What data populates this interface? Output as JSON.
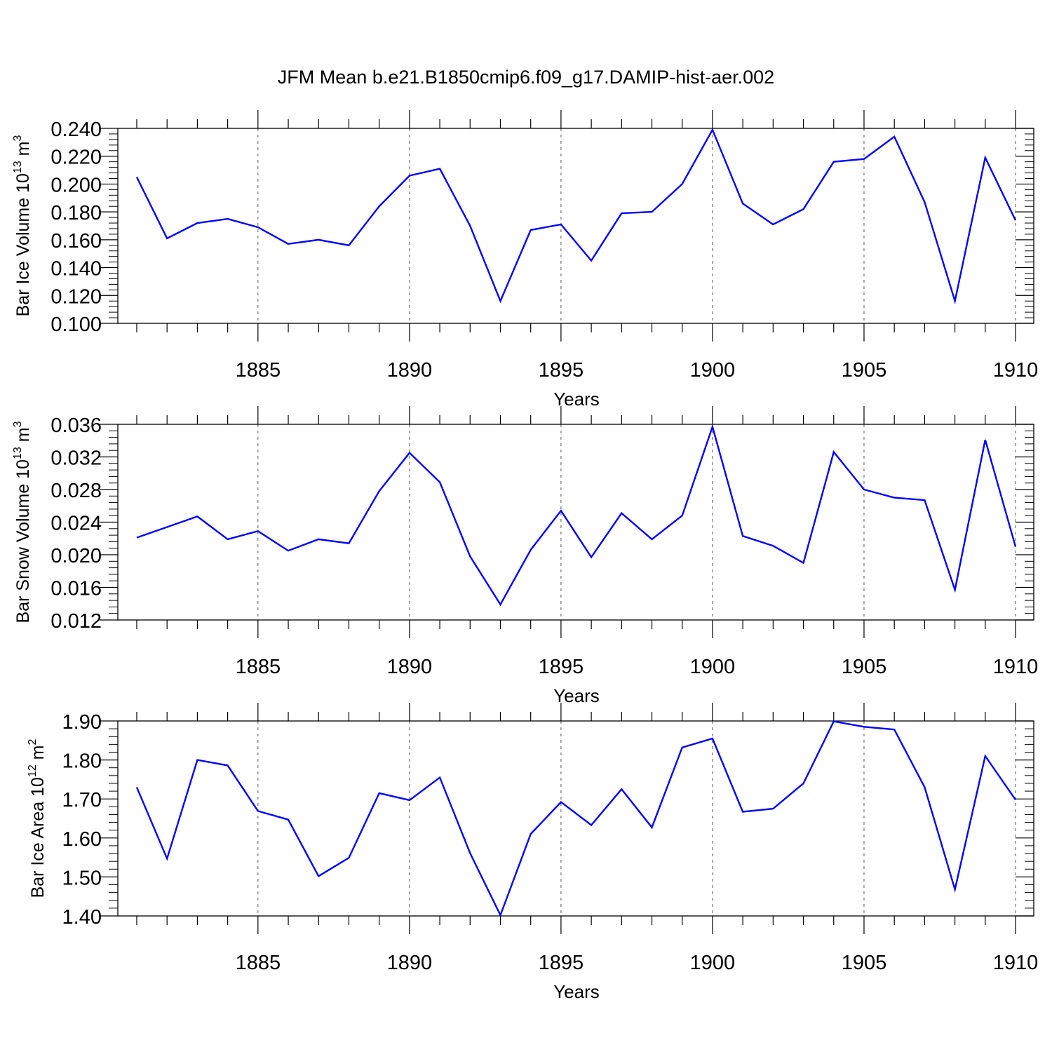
{
  "title": "JFM Mean b.e21.B1850cmip6.f09_g17.DAMIP-hist-aer.002",
  "colors": {
    "series": "#0000ff",
    "axis": "#000000",
    "grid": "#555555"
  },
  "chart_data": [
    {
      "type": "line",
      "ylabel": {
        "main": "Bar Ice Volume 10",
        "exp": "13",
        "unit": " m",
        "unit_exp": "3"
      },
      "xlabel": "Years",
      "xlim": [
        1881,
        1910
      ],
      "ylim": [
        0.1,
        0.24
      ],
      "x_ticks": [
        "1885",
        "1890",
        "1895",
        "1900",
        "1905",
        "1910"
      ],
      "y_ticks": [
        "0.100",
        "0.120",
        "0.140",
        "0.160",
        "0.180",
        "0.200",
        "0.220",
        "0.240"
      ],
      "grid": "dashed vertical at major x ticks",
      "x": [
        1881,
        1882,
        1883,
        1884,
        1885,
        1886,
        1887,
        1888,
        1889,
        1890,
        1891,
        1892,
        1893,
        1894,
        1895,
        1896,
        1897,
        1898,
        1899,
        1900,
        1901,
        1902,
        1903,
        1904,
        1905,
        1906,
        1907,
        1908,
        1909,
        1910
      ],
      "values": [
        0.205,
        0.161,
        0.172,
        0.175,
        0.169,
        0.157,
        0.16,
        0.156,
        0.184,
        0.206,
        0.211,
        0.17,
        0.116,
        0.167,
        0.171,
        0.145,
        0.179,
        0.18,
        0.2,
        0.239,
        0.186,
        0.171,
        0.182,
        0.216,
        0.218,
        0.234,
        0.187,
        0.116,
        0.219,
        0.174
      ]
    },
    {
      "type": "line",
      "ylabel": {
        "main": "Bar Snow Volume 10",
        "exp": "13",
        "unit": " m",
        "unit_exp": "3"
      },
      "xlabel": "Years",
      "xlim": [
        1881,
        1910
      ],
      "ylim": [
        0.012,
        0.036
      ],
      "x_ticks": [
        "1885",
        "1890",
        "1895",
        "1900",
        "1905",
        "1910"
      ],
      "y_ticks": [
        "0.012",
        "0.016",
        "0.020",
        "0.024",
        "0.028",
        "0.032",
        "0.036"
      ],
      "grid": "dashed vertical at major x ticks",
      "x": [
        1881,
        1882,
        1883,
        1884,
        1885,
        1886,
        1887,
        1888,
        1889,
        1890,
        1891,
        1892,
        1893,
        1894,
        1895,
        1896,
        1897,
        1898,
        1899,
        1900,
        1901,
        1902,
        1903,
        1904,
        1905,
        1906,
        1907,
        1908,
        1909,
        1910
      ],
      "values": [
        0.0221,
        0.0234,
        0.0247,
        0.0219,
        0.0229,
        0.0205,
        0.0219,
        0.0214,
        0.0278,
        0.0325,
        0.0289,
        0.0198,
        0.0139,
        0.0206,
        0.0254,
        0.0197,
        0.0251,
        0.0219,
        0.0248,
        0.0357,
        0.0223,
        0.0211,
        0.019,
        0.0326,
        0.028,
        0.027,
        0.0267,
        0.0157,
        0.0341,
        0.021
      ]
    },
    {
      "type": "line",
      "ylabel": {
        "main": "Bar Ice Area 10",
        "exp": "12",
        "unit": " m",
        "unit_exp": "2"
      },
      "xlabel": "Years",
      "xlim": [
        1881,
        1910
      ],
      "ylim": [
        1.4,
        1.9
      ],
      "x_ticks": [
        "1885",
        "1890",
        "1895",
        "1900",
        "1905",
        "1910"
      ],
      "y_ticks": [
        "1.40",
        "1.50",
        "1.60",
        "1.70",
        "1.80",
        "1.90"
      ],
      "grid": "dashed vertical at major x ticks",
      "x": [
        1881,
        1882,
        1883,
        1884,
        1885,
        1886,
        1887,
        1888,
        1889,
        1890,
        1891,
        1892,
        1893,
        1894,
        1895,
        1896,
        1897,
        1898,
        1899,
        1900,
        1901,
        1902,
        1903,
        1904,
        1905,
        1906,
        1907,
        1908,
        1909,
        1910
      ],
      "values": [
        1.73,
        1.547,
        1.8,
        1.786,
        1.669,
        1.647,
        1.502,
        1.549,
        1.715,
        1.697,
        1.755,
        1.561,
        1.402,
        1.61,
        1.692,
        1.633,
        1.725,
        1.627,
        1.832,
        1.855,
        1.667,
        1.675,
        1.74,
        1.899,
        1.885,
        1.878,
        1.73,
        1.468,
        1.81,
        1.698
      ]
    }
  ]
}
